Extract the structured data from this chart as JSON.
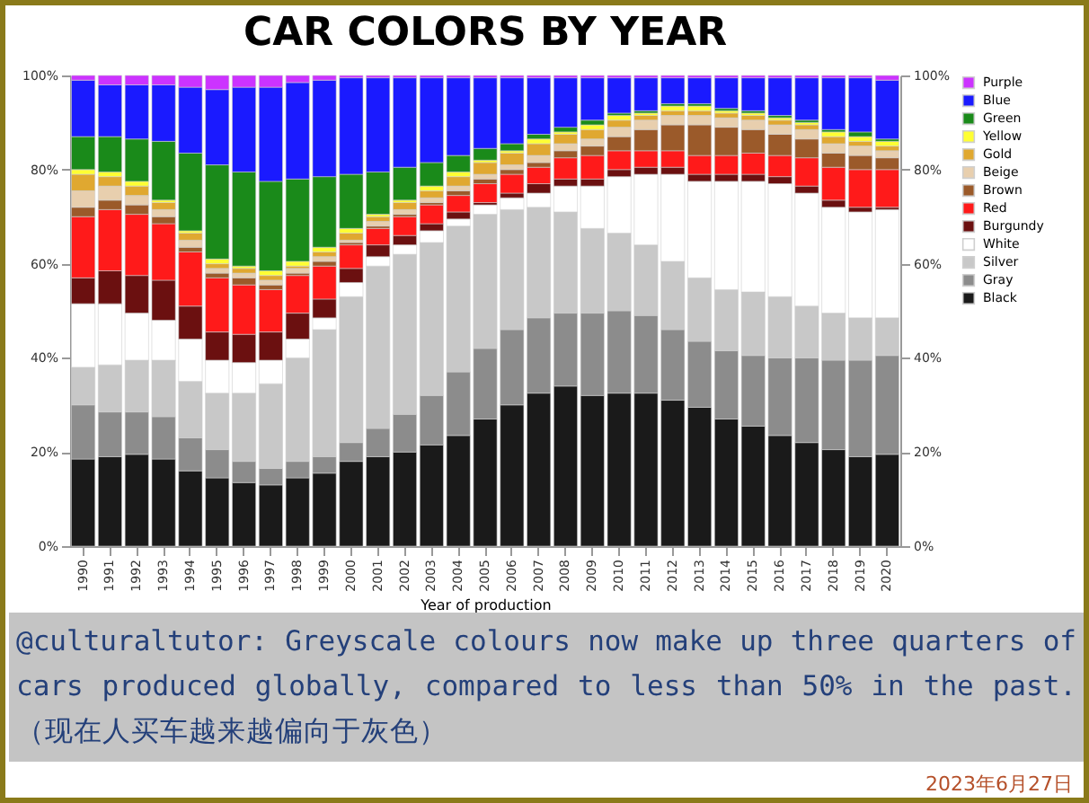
{
  "chart_data": {
    "type": "bar",
    "title": "CAR COLORS BY YEAR",
    "xlabel": "Year of production",
    "stacked": true,
    "legend": "right",
    "grid": false,
    "categories": [
      "1990",
      "1991",
      "1992",
      "1993",
      "1994",
      "1995",
      "1996",
      "1997",
      "1998",
      "1999",
      "2000",
      "2001",
      "2002",
      "2003",
      "2004",
      "2005",
      "2006",
      "2007",
      "2008",
      "2009",
      "2010",
      "2011",
      "2012",
      "2013",
      "2014",
      "2015",
      "2016",
      "2017",
      "2018",
      "2019",
      "2020"
    ],
    "ylim": [
      0,
      100
    ],
    "yticks": [
      {
        "value": 0,
        "label": "0%"
      },
      {
        "value": 20,
        "label": "20%"
      },
      {
        "value": 40,
        "label": "40%"
      },
      {
        "value": 60,
        "label": "60%"
      },
      {
        "value": 80,
        "label": "80%"
      },
      {
        "value": 100,
        "label": "100%"
      }
    ],
    "y2lim": [
      0,
      100
    ],
    "y2ticks": [
      {
        "value": 0,
        "label": "0%"
      },
      {
        "value": 20,
        "label": "20%"
      },
      {
        "value": 40,
        "label": "40%"
      },
      {
        "value": 60,
        "label": "60%"
      },
      {
        "value": 80,
        "label": "80%"
      },
      {
        "value": 100,
        "label": "100%"
      }
    ],
    "series": [
      {
        "name": "Black",
        "color": "#1a1a1a",
        "values": [
          18.5,
          19,
          19.5,
          18.5,
          16,
          14.5,
          13.5,
          13,
          14.5,
          15.5,
          18,
          19,
          20,
          21.5,
          23.5,
          27,
          30,
          32.5,
          34,
          32,
          32.5,
          32.5,
          31,
          29.5,
          27,
          25.5,
          23.5,
          22,
          20.5,
          19,
          19.5
        ]
      },
      {
        "name": "Gray",
        "color": "#8c8c8c",
        "values": [
          11.5,
          9.5,
          9,
          9,
          7,
          6,
          4.5,
          3.5,
          3.5,
          3.5,
          4,
          6,
          8,
          10.5,
          13.5,
          15,
          16,
          16,
          15.5,
          17.5,
          17.5,
          16.5,
          15,
          14,
          14.5,
          15,
          16.5,
          18,
          19,
          20.5,
          21
        ]
      },
      {
        "name": "Silver",
        "color": "#c8c8c8",
        "values": [
          8,
          10,
          11,
          12,
          12,
          12,
          14.5,
          18,
          22,
          27,
          31,
          34.5,
          34,
          32.5,
          31,
          28.5,
          25.5,
          23.5,
          21.5,
          18,
          16.5,
          15,
          14.5,
          13.5,
          13,
          13.5,
          13,
          11,
          10,
          9,
          8
        ]
      },
      {
        "name": "White",
        "color": "#ffffff",
        "values": [
          13.5,
          13,
          10,
          8.5,
          9,
          7,
          6.5,
          5,
          4,
          2.5,
          3,
          2,
          2,
          2.5,
          1.5,
          2,
          2.5,
          3,
          5.5,
          9,
          12,
          15,
          18.5,
          20.5,
          23,
          23.5,
          24,
          24,
          22.5,
          22.5,
          23
        ]
      },
      {
        "name": "Burgundy",
        "color": "#6b1010",
        "values": [
          5.5,
          7,
          8,
          8.5,
          7,
          6,
          6,
          6,
          5.5,
          4,
          3,
          2.5,
          2,
          1.5,
          1.5,
          0.5,
          1,
          2,
          1.5,
          1.5,
          1.5,
          1.5,
          1.5,
          1.5,
          1.5,
          1.5,
          1.5,
          1.5,
          1.5,
          1,
          0.5
        ]
      },
      {
        "name": "Red",
        "color": "#ff1a1a",
        "values": [
          13,
          13,
          13,
          12,
          11.5,
          11.5,
          10.5,
          9,
          8,
          7,
          5,
          3.5,
          4,
          4,
          3.5,
          4,
          4,
          3.5,
          4.5,
          5,
          4,
          3.5,
          3.5,
          4,
          4,
          4.5,
          4.5,
          6,
          7,
          8,
          8
        ]
      },
      {
        "name": "Brown",
        "color": "#9b5a2a",
        "values": [
          2,
          2,
          2,
          1.5,
          1,
          1,
          1.5,
          1,
          0.5,
          1,
          0.5,
          0.5,
          0.5,
          0.5,
          1,
          1,
          1,
          1,
          1.5,
          2,
          3,
          4.5,
          5.5,
          6.5,
          6,
          5,
          4.5,
          4,
          3,
          3,
          2.5
        ]
      },
      {
        "name": "Beige",
        "color": "#e8cfae",
        "values": [
          3.5,
          3,
          2,
          1.5,
          1.5,
          1,
          1,
          1,
          1,
          1,
          0.5,
          1,
          1,
          1,
          1,
          1,
          1,
          1.5,
          1.5,
          1.5,
          2,
          2,
          2,
          2,
          2,
          2,
          2,
          2,
          2,
          2,
          1.5
        ]
      },
      {
        "name": "Gold",
        "color": "#e0a830",
        "values": [
          3.5,
          2,
          2,
          1.5,
          1.5,
          1,
          1,
          1,
          0.5,
          1,
          1.5,
          1,
          1.5,
          1.5,
          2,
          2.5,
          2.5,
          2.5,
          2,
          2,
          1.5,
          1,
          1,
          1,
          1,
          1,
          1,
          1,
          1.5,
          1,
          1
        ]
      },
      {
        "name": "Yellow",
        "color": "#ffff33",
        "values": [
          1,
          1,
          1,
          0.5,
          0.5,
          1,
          0.5,
          1,
          1,
          1,
          1,
          0.5,
          0.5,
          1,
          1,
          0.5,
          0.5,
          1,
          0.5,
          1,
          1,
          0.5,
          1,
          1,
          0.5,
          0.5,
          0.5,
          0.5,
          1,
          1,
          1
        ]
      },
      {
        "name": "Green",
        "color": "#1a8a1a",
        "values": [
          7,
          7.5,
          9,
          12.5,
          16.5,
          20,
          20,
          19,
          17.5,
          15,
          11.5,
          9,
          7,
          5,
          3.5,
          2.5,
          1.5,
          1,
          1,
          1,
          0.5,
          0.5,
          0.5,
          0.5,
          0.5,
          0.5,
          0.5,
          0.5,
          0.5,
          1,
          0.5
        ]
      },
      {
        "name": "Blue",
        "color": "#1a1aff",
        "values": [
          12,
          11,
          11.5,
          12,
          14,
          16,
          18,
          20,
          20.5,
          20.5,
          20.5,
          20,
          19,
          18,
          16.5,
          15,
          14,
          12,
          10.5,
          9,
          7.5,
          7,
          5.5,
          5.5,
          6.5,
          7,
          8,
          9,
          11,
          11.5,
          12.5
        ]
      },
      {
        "name": "Purple",
        "color": "#cc33ff",
        "values": [
          1,
          2,
          2,
          2,
          2.5,
          3,
          2.5,
          2.5,
          1.5,
          1,
          0.5,
          0.5,
          0.5,
          0.5,
          0.5,
          0.5,
          0.5,
          0.5,
          0.5,
          0.5,
          0.5,
          0.5,
          0.5,
          0.5,
          0.5,
          0.5,
          0.5,
          0.5,
          0.5,
          0.5,
          1
        ]
      }
    ],
    "annotations": [
      "@culturaltutor: Greyscale colours now make up three quarters of cars produced globally, compared to less than 50% in the past.（现在人买车越来越偏向于灰色）",
      "2023年6月27日"
    ]
  }
}
